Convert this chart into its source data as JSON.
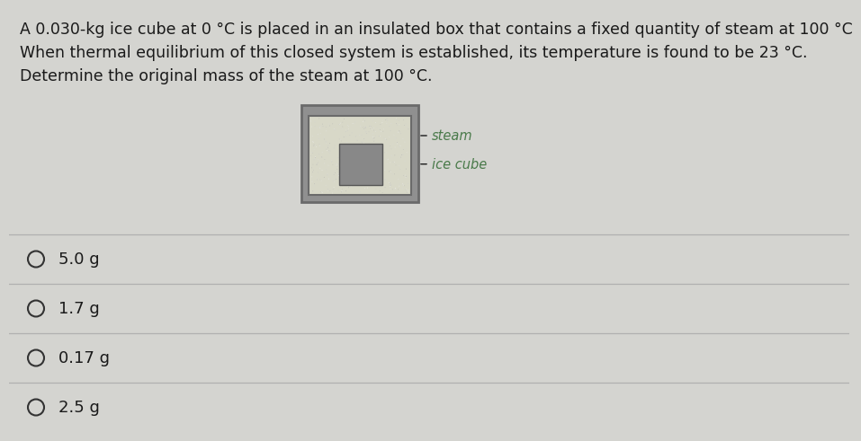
{
  "background_color": "#d4d4d0",
  "text_color": "#1a1a1a",
  "title_lines": [
    "A 0.030-kg ice cube at 0 °C is placed in an insulated box that contains a fixed quantity of steam at 100 °C",
    "When thermal equilibrium of this closed system is established, its temperature is found to be 23 °C.",
    "Determine the original mass of the steam at 100 °C."
  ],
  "choices": [
    "5.0 g",
    "1.7 g",
    "0.17 g",
    "2.5 g"
  ],
  "outer_box_color": "#6a6a6a",
  "outer_box_face": "#909090",
  "inner_box_face": "#d8d8c8",
  "ice_cube_color": "#888888",
  "steam_label_color": "#4a7a4a",
  "ice_label_color": "#4a7a4a",
  "divider_color": "#b0b0b0",
  "choice_circle_color": "#333333",
  "title_fontsize": 12.5,
  "choice_fontsize": 13.0,
  "label_fontsize": 10.5
}
